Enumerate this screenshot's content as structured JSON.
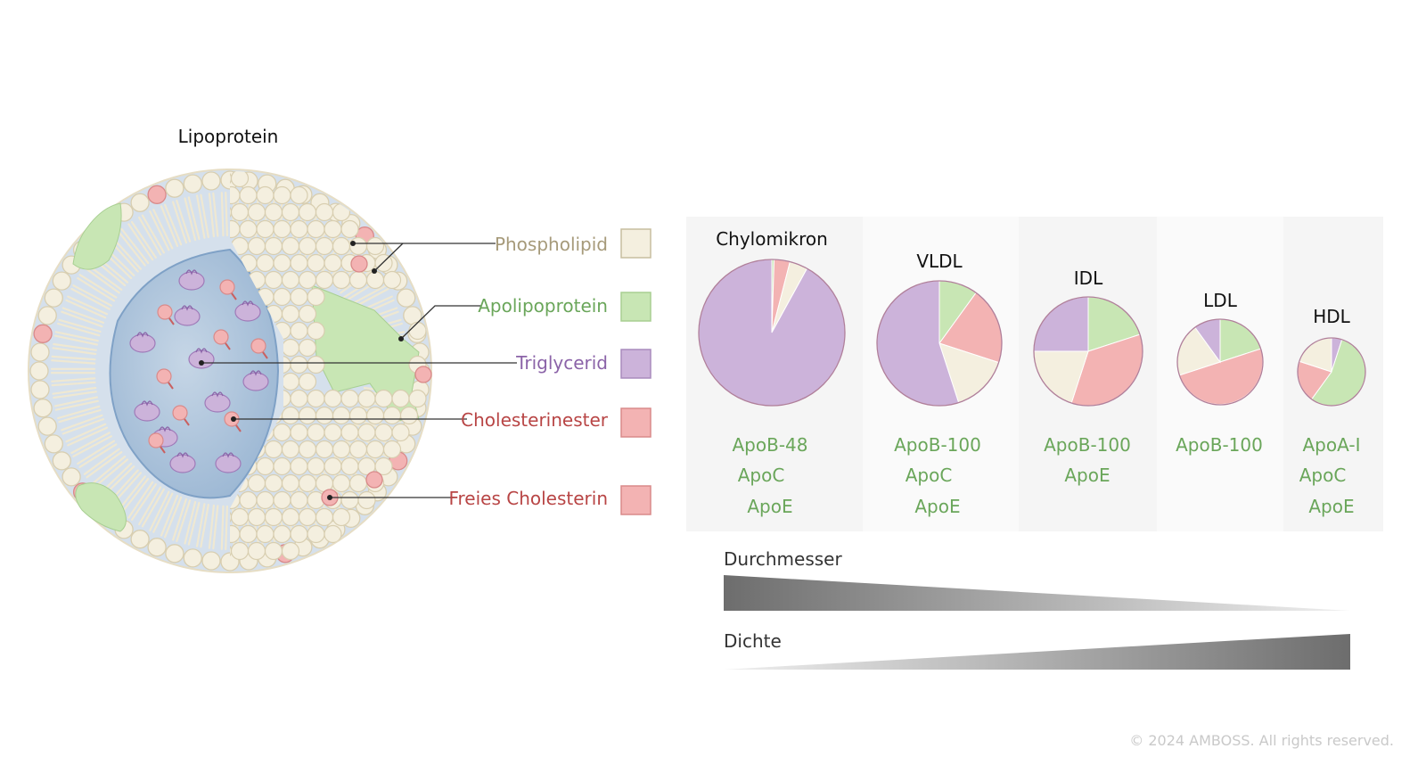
{
  "diagram_title": "Lipoprotein",
  "legend": [
    {
      "key": "phospholipid",
      "label": "Phospholipid",
      "text_color": "#a69a7a",
      "swatch": "#f4efdf"
    },
    {
      "key": "apolipoprotein",
      "label": "Apolipoprotein",
      "text_color": "#6aa65a",
      "swatch": "#c8e6b4"
    },
    {
      "key": "triglycerid",
      "label": "Triglycerid",
      "text_color": "#8b63a8",
      "swatch": "#ccb3da"
    },
    {
      "key": "cholesterinester",
      "label": "Cholesterinester",
      "text_color": "#b84545",
      "swatch": "#f3b3b3"
    },
    {
      "key": "freies_cholesterin",
      "label": "Freies Cholesterin",
      "text_color": "#b84545",
      "swatch": "#f3b3b3"
    }
  ],
  "colors": {
    "phospholipid": "#f4efdf",
    "apolipoprotein": "#c8e6b4",
    "triglycerid": "#ccb3da",
    "cholesterin": "#f3b3b3",
    "apo_text": "#6aa65a",
    "core": "#aac3dc",
    "shell": "#d5e0ec"
  },
  "lipoprotein_classes": [
    {
      "name": "Chylomikron",
      "fractions": {
        "triglycerid": 0.92,
        "cholesterin": 0.035,
        "phospholipid": 0.04,
        "apolipoprotein": 0.005
      },
      "apos": [
        "ApoB-48",
        "ApoC",
        "ApoE"
      ]
    },
    {
      "name": "VLDL",
      "fractions": {
        "triglycerid": 0.55,
        "phospholipid": 0.15,
        "cholesterin": 0.2,
        "apolipoprotein": 0.1
      },
      "apos": [
        "ApoB-100",
        "ApoC",
        "ApoE"
      ]
    },
    {
      "name": "IDL",
      "fractions": {
        "triglycerid": 0.25,
        "phospholipid": 0.2,
        "cholesterin": 0.35,
        "apolipoprotein": 0.2
      },
      "apos": [
        "ApoB-100",
        "ApoE"
      ]
    },
    {
      "name": "LDL",
      "fractions": {
        "triglycerid": 0.1,
        "phospholipid": 0.2,
        "cholesterin": 0.5,
        "apolipoprotein": 0.2
      },
      "apos": [
        "ApoB-100"
      ]
    },
    {
      "name": "HDL",
      "fractions": {
        "triglycerid": 0.05,
        "phospholipid": 0.2,
        "cholesterin": 0.2,
        "apolipoprotein": 0.55
      },
      "apos": [
        "ApoA-I",
        "ApoC",
        "ApoE"
      ]
    }
  ],
  "gradients": [
    {
      "label": "Durchmesser",
      "direction": "decreasing"
    },
    {
      "label": "Dichte",
      "direction": "increasing"
    }
  ],
  "copyright": "© 2024 AMBOSS. All rights reserved."
}
